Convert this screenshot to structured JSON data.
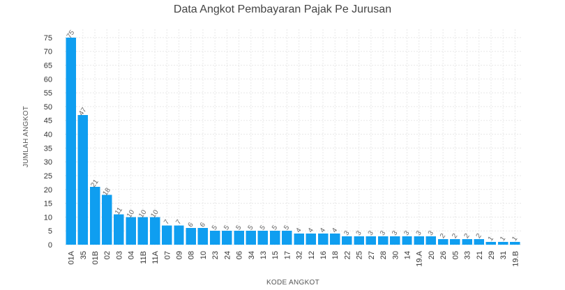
{
  "chart_data": {
    "type": "bar",
    "title": "Data Angkot Pembayaran Pajak Pe Jurusan",
    "xlabel": "KODE ANGKOT",
    "ylabel": "JUMLAH ANGKOT",
    "categories": [
      "01A",
      "35",
      "01B",
      "02",
      "03",
      "04",
      "11B",
      "11A",
      "07",
      "09",
      "08",
      "10",
      "23",
      "24",
      "06",
      "34",
      "13",
      "15",
      "17",
      "32",
      "12",
      "16",
      "18",
      "22",
      "25",
      "27",
      "28",
      "30",
      "14",
      "19.A",
      "20",
      "26",
      "05",
      "33",
      "21",
      "29",
      "31",
      "19.B"
    ],
    "values": [
      75,
      47,
      21,
      18,
      11,
      10,
      10,
      10,
      7,
      7,
      6,
      6,
      5,
      5,
      5,
      5,
      5,
      5,
      5,
      4,
      4,
      4,
      4,
      3,
      3,
      3,
      3,
      3,
      3,
      3,
      3,
      2,
      2,
      2,
      2,
      1,
      1,
      1
    ],
    "ylim": [
      0,
      78
    ],
    "yticks": [
      0,
      5,
      10,
      15,
      20,
      25,
      30,
      35,
      40,
      45,
      50,
      55,
      60,
      65,
      70,
      75
    ],
    "grid": true,
    "bar_color": "#0f9ef0"
  }
}
